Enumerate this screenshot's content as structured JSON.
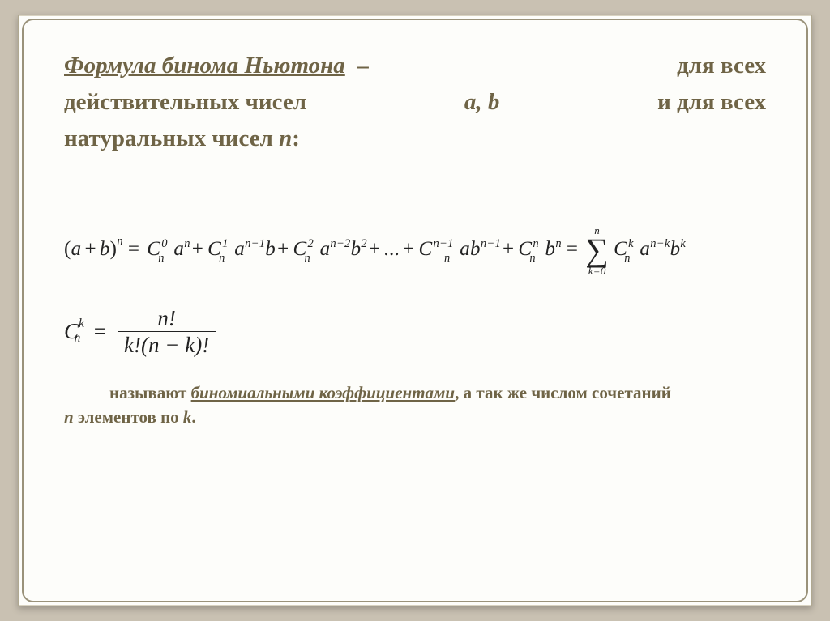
{
  "colors": {
    "page_bg": "#c9c1b2",
    "slide_bg": "#fdfdfa",
    "border": "#9a927a",
    "text_olive": "#6f6446",
    "text_black": "#222222"
  },
  "intro": {
    "title_underlined": "Формула бинома Ньютона",
    "dash": "–",
    "line1_tail": "для всех",
    "line2_a": "действительных чисел",
    "vars_ab": "a, b",
    "line2_b": "и для всех",
    "line3_a": "натуральных чисел",
    "var_n": "n",
    "colon": ":"
  },
  "formula": {
    "lhs_open": "(",
    "lhs_a": "a",
    "lhs_plus": "+",
    "lhs_b": "b",
    "lhs_close": ")",
    "lhs_exp": "n",
    "eq": "=",
    "C": "C",
    "sub_n": "n",
    "a": "a",
    "b": "b",
    "t0_sup": "0",
    "t0_aexp": "n",
    "t1_sup": "1",
    "t1_aexp": "n−1",
    "t2_sup": "2",
    "t2_aexp": "n−2",
    "t2_bexp": "2",
    "dots": "...",
    "tnm1_sup": "n−1",
    "tnm1_bexp": "n−1",
    "tn_sup": "n",
    "tn_bexp": "n",
    "plus": "+",
    "sigma_top": "n",
    "sigma_glyph": "∑",
    "sigma_bot": "k=0",
    "sk_sup": "k",
    "sk_aexp": "n−k",
    "sk_bexp": "k"
  },
  "coef": {
    "C": "C",
    "sup": "k",
    "sub": "n",
    "eq": "=",
    "num": "n!",
    "den": "k!(n − k)!"
  },
  "conclusion": {
    "lead": "называют",
    "term_underlined": "биномиальными коэффициентами",
    "mid": ", а так же числом сочетаний",
    "line2_a": "n",
    "line2_b": " элементов по ",
    "line2_c": "k",
    "period": "."
  }
}
